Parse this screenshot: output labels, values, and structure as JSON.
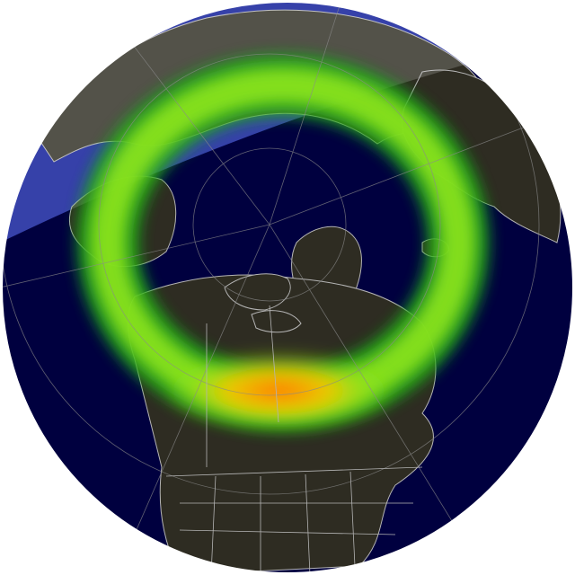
{
  "map": {
    "kind": "aurora-oval-forecast",
    "projection": "north-polar-azimuthal",
    "hemisphere": "north",
    "colors": {
      "ocean": "#00003f",
      "ocean_daylit": "#0a1896",
      "land": "#2e2c22",
      "land_daylit": "#545140",
      "coastline": "#b4b4b4",
      "graticule": "#8a8a8a",
      "aurora_low": "#1aa51a",
      "aurora_mid": "#8ee61a",
      "aurora_high": "#f0c800",
      "aurora_peak": "#ff7a00"
    },
    "layers": [
      "ocean",
      "daylight-region",
      "land",
      "aurora-oval",
      "graticule",
      "coastlines-and-borders"
    ]
  }
}
